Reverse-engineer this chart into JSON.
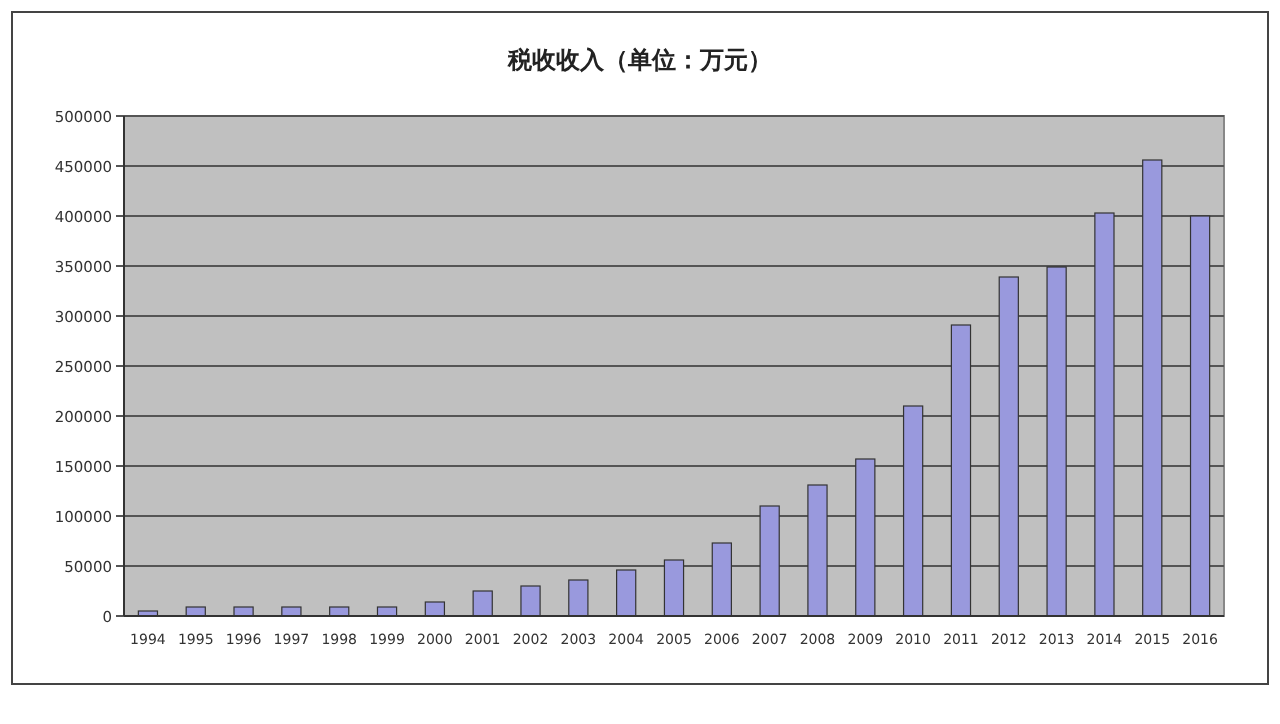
{
  "chart_data": {
    "type": "bar",
    "title": "税收收入（单位：万元）",
    "categories": [
      "1994",
      "1995",
      "1996",
      "1997",
      "1998",
      "1999",
      "2000",
      "2001",
      "2002",
      "2003",
      "2004",
      "2005",
      "2006",
      "2007",
      "2008",
      "2009",
      "2010",
      "2011",
      "2012",
      "2013",
      "2014",
      "2015",
      "2016"
    ],
    "values": [
      5000,
      9000,
      9000,
      9000,
      9000,
      9000,
      14000,
      25000,
      30000,
      36000,
      46000,
      56000,
      73000,
      110000,
      131000,
      157000,
      210000,
      291000,
      339000,
      349000,
      403000,
      456000,
      400000
    ],
    "color": "#9999dd",
    "ylim": [
      0,
      500000
    ],
    "yticks": [
      0,
      50000,
      100000,
      150000,
      200000,
      250000,
      300000,
      350000,
      400000,
      450000,
      500000
    ],
    "grid": "y"
  }
}
